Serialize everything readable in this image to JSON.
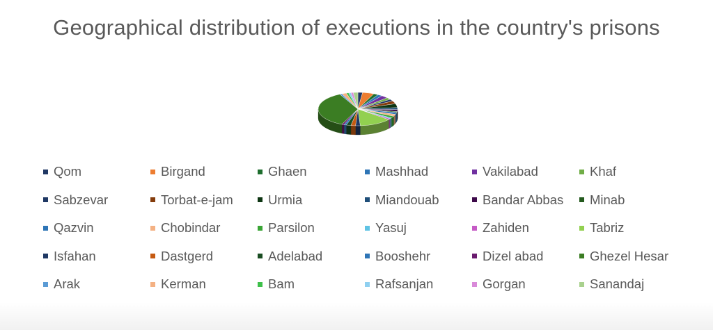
{
  "chart_data": {
    "type": "pie",
    "title": "Geographical distribution of executions in the country's prisons",
    "legend_position": "bottom",
    "categories": [
      "Qom",
      "Birgand",
      "Ghaen",
      "Mashhad",
      "Vakilabad",
      "Khaf",
      "Sabzevar",
      "Torbat-e-jam",
      "Urmia",
      "Miandouab",
      "Bandar Abbas",
      "Minab",
      "Qazvin",
      "Chobindar",
      "Parsilon",
      "Yasuj",
      "Zahiden",
      "Tabriz",
      "Isfahan",
      "Dastgerd",
      "Adelabad",
      "Booshehr",
      "Dizel abad",
      "Ghezel Hesar",
      "Arak",
      "Kerman",
      "Bam",
      "Rafsanjan",
      "Gorgan",
      "Sanandaj"
    ],
    "values": [
      2,
      5,
      2,
      2,
      3,
      2,
      2,
      3,
      4,
      2,
      2,
      1,
      2,
      2,
      2,
      1,
      1,
      14,
      2,
      2,
      2,
      1,
      1,
      38,
      1,
      2,
      1,
      1,
      1,
      2
    ],
    "colors": [
      "#203864",
      "#ed7d31",
      "#1e6e2e",
      "#2e75b6",
      "#7030a0",
      "#70ad47",
      "#1f3864",
      "#843c0c",
      "#0d3512",
      "#1f4e79",
      "#3d0a4a",
      "#245a1e",
      "#2e75b6",
      "#f4b183",
      "#3aa535",
      "#5fc3e4",
      "#c55ac5",
      "#92d050",
      "#1f3864",
      "#c55a11",
      "#1a4d22",
      "#2e75b6",
      "#6a1b6e",
      "#3b7d23",
      "#5b9bd5",
      "#f4b183",
      "#3ec04a",
      "#8fd0f0",
      "#d98ad9",
      "#a9d18e"
    ]
  }
}
